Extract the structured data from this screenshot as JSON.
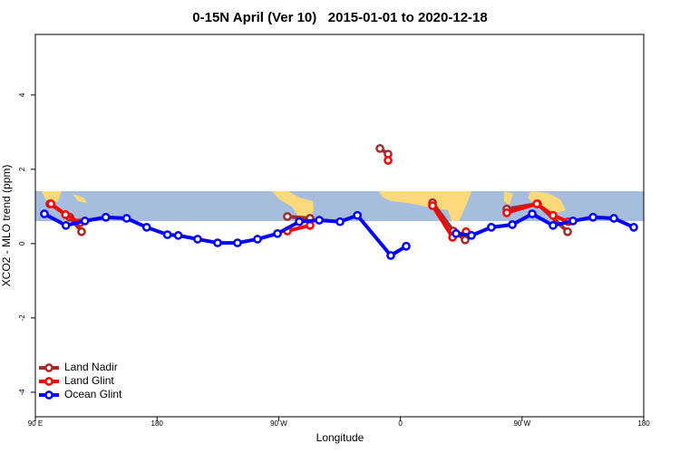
{
  "chart_data": {
    "type": "line",
    "title": "0-15N April (Ver 10)   2015-01-01 to 2020-12-18",
    "x_label": "Longitude",
    "y_label": "XCO2 - MLO trend (ppm)",
    "xlim": [
      90,
      540
    ],
    "ylim": [
      -4.66,
      5.63
    ],
    "xticks": [
      {
        "value": 90,
        "label": "90 E"
      },
      {
        "value": 180,
        "label": "180"
      },
      {
        "value": 270,
        "label": "90 W"
      },
      {
        "value": 360,
        "label": "0"
      },
      {
        "value": 450,
        "label": "90 W"
      },
      {
        "value": 540,
        "label": "180"
      }
    ],
    "yticks": [
      -4,
      -2,
      0,
      2,
      4
    ],
    "legend_position": "bottom-left",
    "series": [
      {
        "name": "Land Nadir",
        "color": "#a52a2a",
        "x": [
          100.7,
          115.5,
          124.2,
          200,
          276.4,
          293.2,
          320,
          344.9,
          350.9,
          367,
          383.8,
          399.2,
          407.9,
          420,
          438.7,
          461.5,
          483.7
        ],
        "values": [
          1.07,
          0.71,
          0.32,
          null,
          0.73,
          0.68,
          null,
          2.56,
          2.41,
          null,
          1.1,
          0.34,
          0.1,
          null,
          0.93,
          1.07,
          0.32
        ]
      },
      {
        "name": "Land Glint",
        "color": "#ff0000",
        "x": [
          101.6,
          112.3,
          123.0,
          200,
          276.4,
          293.2,
          320,
          350.9,
          367,
          383.8,
          398.6,
          408.6,
          420,
          438.7,
          460.9,
          472.9,
          484.3
        ],
        "values": [
          1.07,
          0.78,
          0.56,
          null,
          0.34,
          0.49,
          null,
          2.24,
          null,
          1.02,
          0.17,
          0.32,
          null,
          0.83,
          1.07,
          0.76,
          0.59
        ]
      },
      {
        "name": "Ocean Glint",
        "color": "#0000ff",
        "x": [
          96.7,
          112.6,
          126.7,
          142.1,
          157.5,
          172.3,
          187.7,
          195.7,
          210.0,
          224.8,
          239.5,
          254.3,
          269.1,
          285.2,
          300.0,
          315.4,
          328.2,
          352.9,
          364.3,
          382,
          401.2,
          412.6,
          427.3,
          442.8,
          457.5,
          472.9,
          487.7,
          502.5,
          517.9,
          532.6
        ],
        "values": [
          0.8,
          0.49,
          0.61,
          0.71,
          0.68,
          0.44,
          0.24,
          0.22,
          0.12,
          0.02,
          0.02,
          0.12,
          0.27,
          0.59,
          0.63,
          0.59,
          0.76,
          -0.32,
          -0.07,
          null,
          0.27,
          0.22,
          0.44,
          0.51,
          0.8,
          0.49,
          0.61,
          0.71,
          0.68,
          0.44
        ]
      }
    ]
  }
}
